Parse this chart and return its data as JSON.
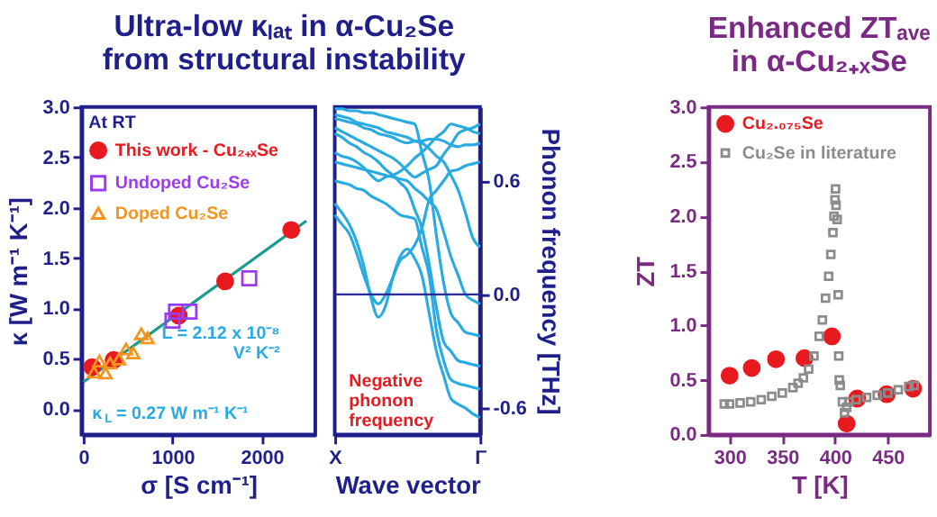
{
  "chart_data": [
    {
      "type": "scatter",
      "title": "Ultra-low κₗₐₜ in α-Cu₂Se\nfrom structural instability",
      "xlabel": "σ [S cm⁻¹]",
      "ylabel": "κ [W m⁻¹ K⁻¹]",
      "xlim": [
        -20,
        2600
      ],
      "xticks": [
        0,
        1000,
        2000
      ],
      "ylim": [
        -0.25,
        3.0
      ],
      "yticks": [
        {
          "value": 0,
          "label": "0.0"
        },
        0.5,
        {
          "value": 1,
          "label": "1.0"
        },
        1.5,
        {
          "value": 2,
          "label": "2.0"
        },
        2.5,
        {
          "value": 3,
          "label": "3.0"
        }
      ],
      "grid": false,
      "legend": "top left",
      "legend_title": "At RT",
      "series": [
        {
          "name": "This work - Cu₂₊ₓSe",
          "color": "#e8191f",
          "marker": "circle",
          "x": [
            100,
            340,
            1070,
            1590,
            2330
          ],
          "values": [
            0.42,
            0.49,
            0.93,
            1.27,
            1.78
          ]
        },
        {
          "name": "Undoped Cu₂Se",
          "color": "#9b3cf0",
          "marker": "square",
          "x": [
            1000,
            1040,
            1190,
            1860
          ],
          "values": [
            0.88,
            0.97,
            0.97,
            1.3
          ]
        },
        {
          "name": "Doped Cu₂Se",
          "color": "#f7941d",
          "marker": "triangle",
          "x": [
            120,
            180,
            250,
            300,
            400,
            480,
            560,
            650,
            720
          ],
          "values": [
            0.37,
            0.48,
            0.36,
            0.46,
            0.5,
            0.6,
            0.56,
            0.75,
            0.71
          ]
        },
        {
          "type": "line",
          "color": "#1a9c8c",
          "x": [
            0,
            2500
          ],
          "values": [
            0.27,
            1.87
          ]
        }
      ],
      "annotations": [
        "L = 2.12 x 10⁻⁸\nV² K⁻²",
        "κ$_{L}$ = 0.27 W m⁻¹ K⁻¹"
      ]
    },
    {
      "type": "line",
      "xlabel": "Wave vector",
      "y2label": "Phonon frequency [THz]",
      "categories": [
        "X",
        null,
        null,
        null,
        null,
        null,
        null,
        null,
        null,
        null,
        null,
        null,
        null,
        null,
        null,
        null,
        null,
        null,
        null,
        null,
        "Γ"
      ],
      "y2lim": [
        -0.74,
        0.99
      ],
      "y2ticks": [
        -0.6,
        {
          "value": 0,
          "label": "0.0"
        },
        0.6
      ],
      "grid": false,
      "ref_lines": [
        {
          "axis": "y2",
          "value": 0,
          "color": "#2b2b9a"
        }
      ],
      "series": [
        {
          "axis": "y2",
          "color": "#29abe2",
          "values": [
            0.93,
            0.92,
            0.91,
            0.9,
            0.88,
            0.87,
            0.85,
            0.84,
            0.83,
            0.81,
            0.8,
            0.81,
            0.81,
            0.82,
            0.82,
            0.81,
            0.79,
            0.78,
            0.79,
            0.79,
            0.8
          ]
        },
        {
          "axis": "y2",
          "color": "#29abe2",
          "values": [
            0.88,
            0.86,
            0.84,
            0.82,
            0.8,
            0.78,
            0.76,
            0.74,
            0.72,
            0.69,
            0.65,
            0.62,
            0.64,
            0.66,
            0.68,
            0.74,
            0.79,
            0.85,
            0.87,
            0.88,
            0.9
          ]
        },
        {
          "axis": "y2",
          "color": "#29abe2",
          "values": [
            0.75,
            0.73,
            0.72,
            0.7,
            0.67,
            0.63,
            0.6,
            0.62,
            0.63,
            0.65,
            0.68,
            0.72,
            0.75,
            0.79,
            0.83,
            0.86,
            0.9,
            0.89,
            0.88,
            0.86,
            0.85
          ]
        },
        {
          "axis": "y2",
          "color": "#29abe2",
          "values": [
            0.48,
            0.43,
            0.37,
            0.28,
            0.15,
            -0.02,
            -0.12,
            -0.06,
            0.09,
            0.2,
            0.24,
            0.19,
            0.1,
            -0.1,
            -0.3,
            -0.43,
            -0.55,
            -0.58,
            -0.6,
            -0.63,
            -0.65
          ]
        },
        {
          "axis": "y2",
          "color": "#29abe2",
          "values": [
            0.42,
            0.37,
            0.32,
            0.22,
            0.1,
            0.0,
            -0.05,
            0.0,
            0.09,
            0.18,
            0.21,
            0.26,
            0.35,
            0.5,
            0.55,
            0.6,
            0.65,
            0.66,
            0.68,
            0.69,
            0.7
          ]
        },
        {
          "axis": "y2",
          "color": "#29abe2",
          "values": [
            0.6,
            0.59,
            0.58,
            0.56,
            0.55,
            0.52,
            0.5,
            0.48,
            0.45,
            0.42,
            0.41,
            0.4,
            0.25,
            0.1,
            -0.19,
            -0.35,
            -0.45,
            -0.47,
            -0.48,
            -0.49,
            -0.5
          ]
        },
        {
          "axis": "y2",
          "color": "#29abe2",
          "values": [
            0.85,
            0.83,
            0.8,
            0.78,
            0.75,
            0.73,
            0.7,
            0.66,
            0.63,
            0.59,
            0.55,
            0.45,
            0.35,
            0.16,
            -0.07,
            -0.25,
            -0.3,
            -0.35,
            -0.36,
            -0.37,
            -0.38
          ]
        },
        {
          "axis": "y2",
          "color": "#29abe2",
          "values": [
            0.98,
            0.98,
            0.97,
            0.97,
            0.96,
            0.96,
            0.95,
            0.94,
            0.93,
            0.92,
            0.91,
            0.9,
            0.75,
            0.6,
            0.31,
            0.06,
            -0.1,
            -0.15,
            -0.2,
            -0.21,
            -0.22
          ]
        },
        {
          "axis": "y2",
          "color": "#29abe2",
          "values": [
            0.7,
            0.69,
            0.68,
            0.67,
            0.66,
            0.65,
            0.64,
            0.63,
            0.62,
            0.61,
            0.6,
            0.56,
            0.53,
            0.49,
            0.45,
            0.33,
            0.2,
            0.1,
            0.0,
            -0.03,
            -0.05
          ]
        },
        {
          "axis": "y2",
          "color": "#29abe2",
          "values": [
            0.95,
            0.94,
            0.93,
            0.91,
            0.9,
            0.89,
            0.88,
            0.86,
            0.85,
            0.84,
            0.83,
            0.81,
            0.8,
            0.77,
            0.73,
            0.7,
            0.63,
            0.55,
            0.43,
            0.3,
            0.25
          ]
        }
      ],
      "annotations": [
        "Negative\nphonon\nfrequency"
      ]
    },
    {
      "type": "scatter",
      "title": "Enhanced ZTₐᵥₑ\nin α-Cu₂₊ₓSe",
      "xlabel": "T [K]",
      "ylabel": "ZT",
      "xlim": [
        280,
        490
      ],
      "xticks": [
        300,
        350,
        400,
        450
      ],
      "ylim": [
        0,
        3.0
      ],
      "yticks": [
        {
          "value": 0,
          "label": "0.0"
        },
        0.5,
        {
          "value": 1,
          "label": "1.0"
        },
        1.5,
        {
          "value": 2,
          "label": "2.0"
        },
        2.5,
        {
          "value": 3,
          "label": "3.0"
        }
      ],
      "grid": false,
      "legend": "top left",
      "series": [
        {
          "name": "Cu₂.₀₇₅Se",
          "color": "#e8191f",
          "marker": "circle",
          "x": [
            300,
            321,
            344,
            371,
            397,
            411,
            421,
            449,
            474
          ],
          "values": [
            0.54,
            0.61,
            0.69,
            0.7,
            0.9,
            0.1,
            0.33,
            0.37,
            0.42
          ]
        },
        {
          "name": "Cu₂Se in literature",
          "color": "#8c8c8c",
          "marker": "square",
          "x": [
            295,
            300,
            310,
            320,
            330,
            340,
            350,
            360,
            365,
            370,
            375,
            380,
            385,
            388,
            391,
            394,
            396,
            398,
            399,
            400,
            400.5,
            401,
            402,
            403,
            403.5,
            404,
            405,
            407,
            409,
            411,
            413,
            420,
            430,
            440,
            450,
            460,
            470,
            475
          ],
          "values": [
            0.28,
            0.28,
            0.29,
            0.3,
            0.32,
            0.35,
            0.38,
            0.43,
            0.47,
            0.52,
            0.6,
            0.72,
            0.9,
            1.05,
            1.25,
            1.45,
            1.65,
            1.85,
            2.0,
            2.15,
            2.25,
            2.1,
            1.97,
            1.28,
            0.72,
            0.5,
            0.45,
            0.3,
            0.2,
            0.25,
            0.3,
            0.32,
            0.34,
            0.36,
            0.38,
            0.41,
            0.44,
            0.45
          ]
        }
      ]
    }
  ]
}
